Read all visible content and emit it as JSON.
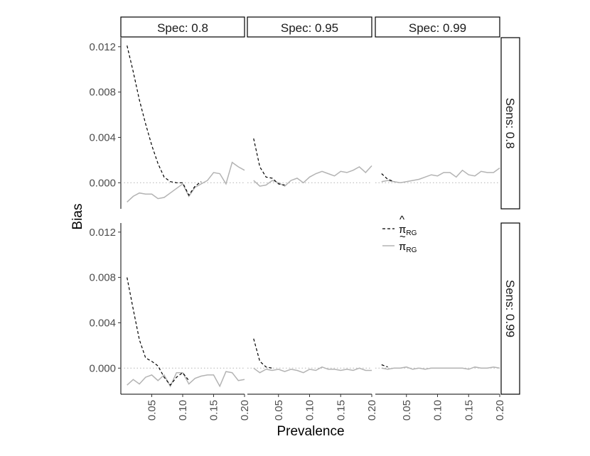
{
  "chart_data": {
    "type": "line",
    "xlabel": "Prevalence",
    "ylabel": "Bias",
    "x_ticks": [
      "0.05",
      "0.10",
      "0.15",
      "0.20"
    ],
    "x_tick_values": [
      0.05,
      0.1,
      0.15,
      0.2
    ],
    "y_ticks": [
      "0.012",
      "0.008",
      "0.004",
      "0.000"
    ],
    "y_tick_values": [
      0.012,
      0.008,
      0.004,
      0.0
    ],
    "xlim": [
      0.0,
      0.2
    ],
    "ylim": [
      -0.0023,
      0.0128
    ],
    "reference_line": 0.0,
    "column_strips": [
      "Spec: 0.8",
      "Spec: 0.95",
      "Spec: 0.99"
    ],
    "row_strips": [
      "Sens: 0.8",
      "Sens: 0.99"
    ],
    "legend": {
      "placement": "inside-bottom-row-middle-panel",
      "entries": [
        {
          "symbol": "π",
          "accent": "^",
          "subscript": "RG",
          "style": "dashed",
          "color": "#000000"
        },
        {
          "symbol": "π",
          "accent": "~",
          "subscript": "RG",
          "style": "solid",
          "color": "#b3b3b3"
        }
      ]
    },
    "panels": [
      {
        "row": 0,
        "col": 0,
        "series": [
          {
            "style": "dashed",
            "color": "#000000",
            "x": [
              0.01,
              0.02,
              0.03,
              0.04,
              0.05,
              0.06,
              0.07,
              0.08,
              0.09,
              0.1,
              0.11,
              0.12,
              0.13
            ],
            "y": [
              0.0121,
              0.0098,
              0.0073,
              0.0052,
              0.0033,
              0.0017,
              0.0005,
              0.0001,
              0.0,
              0.0,
              -0.0011,
              -0.0003,
              0.0001
            ]
          },
          {
            "style": "solid",
            "color": "#b3b3b3",
            "x": [
              0.01,
              0.02,
              0.03,
              0.04,
              0.05,
              0.06,
              0.07,
              0.08,
              0.09,
              0.1,
              0.11,
              0.12,
              0.13,
              0.14,
              0.15,
              0.16,
              0.17,
              0.18,
              0.19,
              0.2
            ],
            "y": [
              -0.0017,
              -0.0012,
              -0.0009,
              -0.001,
              -0.001,
              -0.0014,
              -0.0013,
              -0.0009,
              -0.0005,
              -0.0001,
              -0.0012,
              -0.0004,
              -0.0001,
              0.0002,
              0.0009,
              0.0008,
              -0.0001,
              0.0018,
              0.0014,
              0.0011
            ]
          }
        ]
      },
      {
        "row": 0,
        "col": 1,
        "series": [
          {
            "style": "dashed",
            "color": "#000000",
            "x": [
              0.01,
              0.02,
              0.03,
              0.04,
              0.05,
              0.06
            ],
            "y": [
              0.0039,
              0.0014,
              0.0005,
              0.0004,
              -0.0001,
              -0.0002
            ]
          },
          {
            "style": "solid",
            "color": "#b3b3b3",
            "x": [
              0.01,
              0.02,
              0.03,
              0.04,
              0.05,
              0.06,
              0.07,
              0.08,
              0.09,
              0.1,
              0.11,
              0.12,
              0.13,
              0.14,
              0.15,
              0.16,
              0.17,
              0.18,
              0.19,
              0.2
            ],
            "y": [
              0.0002,
              -0.0003,
              -0.0002,
              0.0002,
              0.0,
              -0.0003,
              0.0002,
              0.0004,
              0.0,
              0.0005,
              0.0008,
              0.001,
              0.0008,
              0.0006,
              0.001,
              0.0009,
              0.0011,
              0.0014,
              0.0009,
              0.0015
            ]
          }
        ]
      },
      {
        "row": 0,
        "col": 2,
        "series": [
          {
            "style": "dashed",
            "color": "#000000",
            "x": [
              0.01,
              0.02,
              0.03
            ],
            "y": [
              0.0008,
              0.0003,
              0.0001
            ]
          },
          {
            "style": "solid",
            "color": "#b3b3b3",
            "x": [
              0.01,
              0.02,
              0.03,
              0.04,
              0.05,
              0.06,
              0.07,
              0.08,
              0.09,
              0.1,
              0.11,
              0.12,
              0.13,
              0.14,
              0.15,
              0.16,
              0.17,
              0.18,
              0.19,
              0.2
            ],
            "y": [
              0.0001,
              0.0002,
              0.0001,
              0.0,
              0.0001,
              0.0002,
              0.0003,
              0.0005,
              0.0007,
              0.0006,
              0.0009,
              0.0009,
              0.0005,
              0.0011,
              0.0007,
              0.0006,
              0.001,
              0.0009,
              0.0009,
              0.0013
            ]
          }
        ]
      },
      {
        "row": 1,
        "col": 0,
        "series": [
          {
            "style": "dashed",
            "color": "#000000",
            "x": [
              0.01,
              0.02,
              0.03,
              0.04,
              0.05,
              0.06,
              0.07,
              0.08,
              0.09,
              0.1,
              0.11
            ],
            "y": [
              0.008,
              0.0052,
              0.0025,
              0.0009,
              0.0006,
              0.0002,
              -0.0008,
              -0.0015,
              -0.0008,
              -0.0004,
              -0.0011
            ]
          },
          {
            "style": "solid",
            "color": "#b3b3b3",
            "x": [
              0.01,
              0.02,
              0.03,
              0.04,
              0.05,
              0.06,
              0.07,
              0.08,
              0.09,
              0.1,
              0.11,
              0.12,
              0.13,
              0.14,
              0.15,
              0.16,
              0.17,
              0.18,
              0.19,
              0.2
            ],
            "y": [
              -0.0015,
              -0.001,
              -0.0014,
              -0.0008,
              -0.0006,
              -0.0011,
              -0.0006,
              -0.0016,
              -0.0004,
              -0.0004,
              -0.0014,
              -0.0009,
              -0.0007,
              -0.0006,
              -0.0006,
              -0.0016,
              -0.0003,
              -0.0004,
              -0.0011,
              -0.001
            ]
          }
        ]
      },
      {
        "row": 1,
        "col": 1,
        "series": [
          {
            "style": "dashed",
            "color": "#000000",
            "x": [
              0.01,
              0.02,
              0.03,
              0.04
            ],
            "y": [
              0.0026,
              0.0006,
              0.0001,
              0.0
            ]
          },
          {
            "style": "solid",
            "color": "#b3b3b3",
            "x": [
              0.01,
              0.02,
              0.03,
              0.04,
              0.05,
              0.06,
              0.07,
              0.08,
              0.09,
              0.1,
              0.11,
              0.12,
              0.13,
              0.14,
              0.15,
              0.16,
              0.17,
              0.18,
              0.19,
              0.2
            ],
            "y": [
              0.0,
              -0.0004,
              -0.0001,
              -0.0002,
              -0.0001,
              -0.0003,
              -0.0001,
              -0.0002,
              -0.0004,
              -0.0001,
              -0.0002,
              0.0001,
              -0.0001,
              -0.0001,
              -0.0002,
              -0.0001,
              -0.0002,
              0.0,
              -0.0002,
              -0.0002
            ]
          }
        ]
      },
      {
        "row": 1,
        "col": 2,
        "series": [
          {
            "style": "dashed",
            "color": "#000000",
            "x": [
              0.01,
              0.02
            ],
            "y": [
              0.0003,
              0.0001
            ]
          },
          {
            "style": "solid",
            "color": "#b3b3b3",
            "x": [
              0.01,
              0.02,
              0.03,
              0.04,
              0.05,
              0.06,
              0.07,
              0.08,
              0.09,
              0.1,
              0.11,
              0.12,
              0.13,
              0.14,
              0.15,
              0.16,
              0.17,
              0.18,
              0.19,
              0.2
            ],
            "y": [
              0.0,
              -0.0001,
              0.0,
              0.0,
              0.0001,
              -0.0001,
              0.0,
              -0.0001,
              0.0,
              0.0,
              0.0,
              0.0,
              0.0,
              0.0,
              -0.0001,
              0.0001,
              0.0,
              0.0,
              0.0001,
              0.0
            ]
          }
        ]
      }
    ]
  }
}
